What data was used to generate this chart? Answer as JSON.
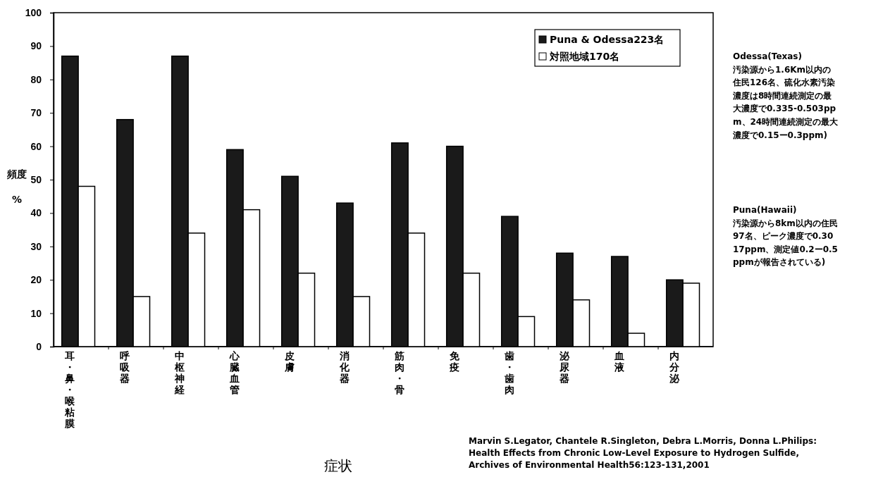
{
  "chart_data": {
    "type": "bar",
    "xlabel": "症状",
    "ylabel": "頻度\n%",
    "categories": [
      "耳・鼻・喉粘膜",
      "呼吸器",
      "中枢神経",
      "心臓血管",
      "皮膚",
      "消化器",
      "筋肉・骨",
      "免疫",
      "歯・歯肉",
      "泌尿器",
      "血液",
      "内分泌"
    ],
    "series": [
      {
        "name": "Puna & Odessa223名",
        "color": "#1a1a1a",
        "values": [
          87,
          68,
          87,
          59,
          51,
          43,
          61,
          60,
          39,
          28,
          27,
          20
        ]
      },
      {
        "name": "対照地域170名",
        "color": "#ffffff",
        "values": [
          48,
          15,
          34,
          41,
          22,
          15,
          34,
          22,
          9,
          14,
          4,
          19
        ]
      }
    ],
    "ylim": [
      0,
      100
    ],
    "yticks": [
      0,
      10,
      20,
      30,
      40,
      50,
      60,
      70,
      80,
      90,
      100
    ],
    "grid": false,
    "legend": "top right",
    "annotations": [
      "Odessa(Texas)\n汚染源から1.6Km以内の住民126名、硫化水素汚染濃度は8時間連続測定の最大濃度で0.335-0.503ppm、24時間連続測定の最大濃度で0.15ー0.3ppm)",
      "Puna(Hawaii)\n汚染源から8km以内の住民97名、ピーク濃度で0.3017ppm、測定値0.2ー0.5ppmが報告されている)",
      "Marvin S.Legator, Chantele R.Singleton, Debra L.Morris, Donna L.Philips:\nHealth Effects from Chronic Low-Level Exposure to Hydrogen Sulfide,\nArchives of Environmental Health56:123-131,2001"
    ]
  }
}
